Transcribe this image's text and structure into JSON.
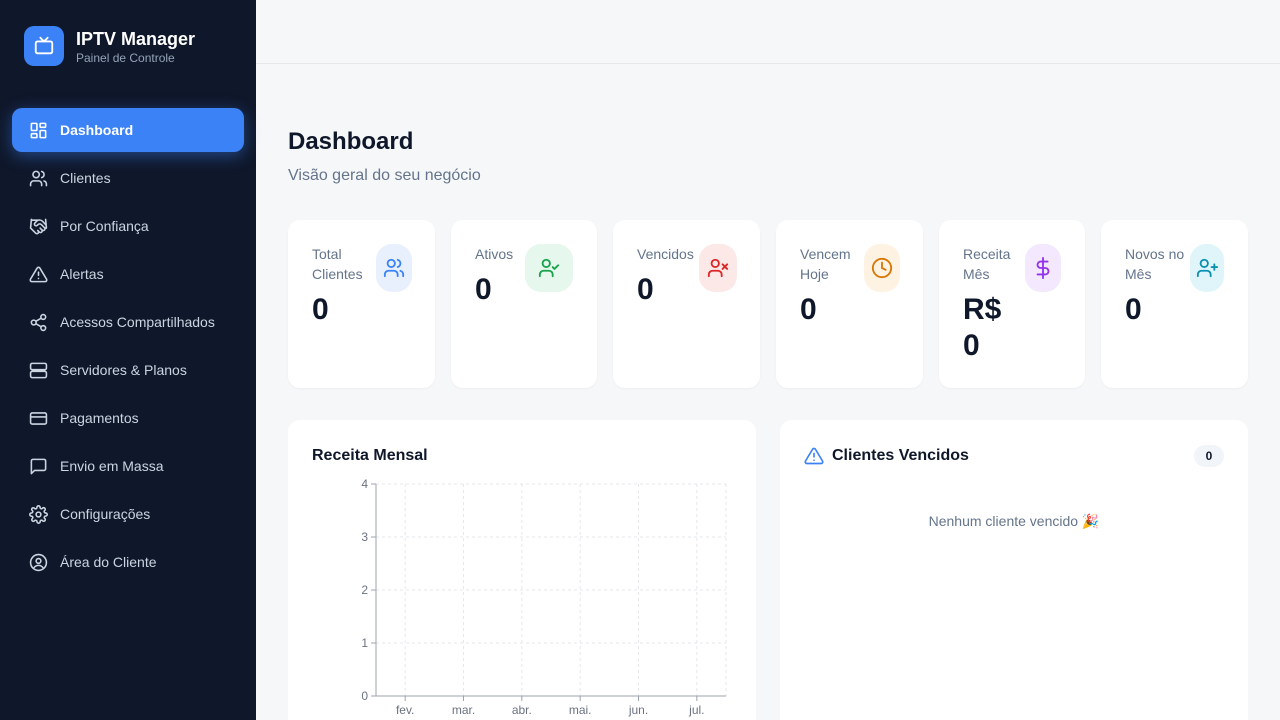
{
  "brand": {
    "title": "IPTV Manager",
    "subtitle": "Painel de Controle"
  },
  "nav": [
    {
      "label": "Dashboard",
      "icon": "dashboard-icon",
      "active": true
    },
    {
      "label": "Clientes",
      "icon": "users-icon"
    },
    {
      "label": "Por Confiança",
      "icon": "handshake-icon"
    },
    {
      "label": "Alertas",
      "icon": "alert-triangle-icon"
    },
    {
      "label": "Acessos Compartilhados",
      "icon": "share-icon"
    },
    {
      "label": "Servidores & Planos",
      "icon": "server-icon"
    },
    {
      "label": "Pagamentos",
      "icon": "credit-card-icon"
    },
    {
      "label": "Envio em Massa",
      "icon": "message-icon"
    },
    {
      "label": "Configurações",
      "icon": "gear-icon"
    },
    {
      "label": "Área do Cliente",
      "icon": "user-circle-icon"
    }
  ],
  "page": {
    "title": "Dashboard",
    "subtitle": "Visão geral do seu negócio"
  },
  "stats": [
    {
      "label": "Total Clientes",
      "value": "0",
      "icon": "users-icon",
      "color": "#3b82f6",
      "bg": "#e8f0fe"
    },
    {
      "label": "Ativos",
      "value": "0",
      "icon": "user-check-icon",
      "color": "#16a34a",
      "bg": "#e6f7ee"
    },
    {
      "label": "Vencidos",
      "value": "0",
      "icon": "user-x-icon",
      "color": "#dc2626",
      "bg": "#fde8e8"
    },
    {
      "label": "Vencem Hoje",
      "value": "0",
      "icon": "clock-icon",
      "color": "#d97706",
      "bg": "#fef3e2"
    },
    {
      "label": "Receita Mês",
      "value": "R$ 0",
      "icon": "dollar-icon",
      "color": "#9333ea",
      "bg": "#f3e8fd"
    },
    {
      "label": "Novos no Mês",
      "value": "0",
      "icon": "user-plus-icon",
      "color": "#0891b2",
      "bg": "#e0f5fa"
    }
  ],
  "revenue_panel": {
    "title": "Receita Mensal"
  },
  "overdue_panel": {
    "title": "Clientes Vencidos",
    "count": "0",
    "empty_message": "Nenhum cliente vencido 🎉"
  },
  "chart_data": {
    "type": "line",
    "categories": [
      "fev.",
      "mar.",
      "abr.",
      "mai.",
      "jun.",
      "jul."
    ],
    "series": [
      {
        "values": [
          0,
          0,
          0,
          0,
          0,
          0
        ]
      }
    ],
    "yticks": [
      0,
      1,
      2,
      3,
      4
    ],
    "ylim": [
      0,
      4
    ],
    "grid": true,
    "title": "Receita Mensal"
  }
}
